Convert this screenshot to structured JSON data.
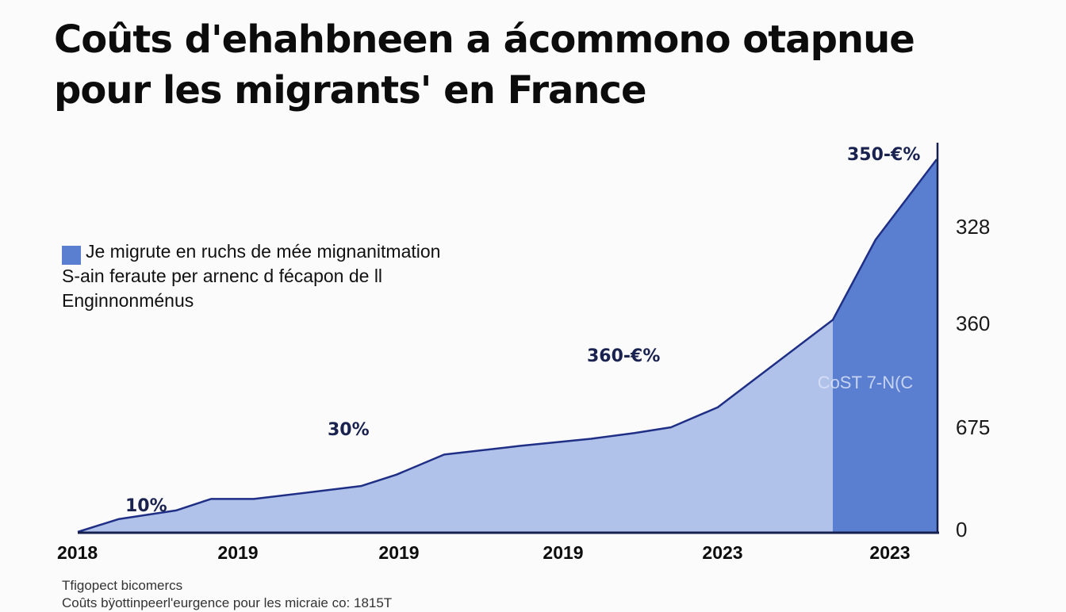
{
  "title_lines": [
    "Coûts d'ehahbneen a ácommono otapnue",
    "pour les migrants' en France"
  ],
  "legend": {
    "lines": [
      "Je migrute en ruchs de mée mignanitmation",
      "S-ain feraute per arnenc d fécapon de ll",
      "Enginnonménus"
    ]
  },
  "colors": {
    "area": "#b0c2ea",
    "highlight": "#5a7fd0",
    "line": "#1f2f86",
    "axis": "#15204f",
    "label": "#1a2350"
  },
  "chart_data": {
    "type": "area",
    "x_labels": [
      "2018",
      "2019",
      "2019",
      "2019",
      "2023",
      "2023"
    ],
    "series": [
      {
        "values": [
          0,
          9,
          15,
          23,
          23,
          32,
          40,
          54,
          60,
          65,
          69,
          73,
          87,
          148,
          204,
          226,
          249,
          260
        ]
      }
    ],
    "right_axis_labels": [
      "328",
      "360",
      "675",
      "0"
    ],
    "data_labels": [
      "10%",
      "30%",
      "360-€%",
      "350-€%"
    ],
    "highlight_label": "CoST 7-N(C",
    "ylim": [
      0,
      260
    ]
  },
  "source": {
    "lines": [
      "Tfigopect bicomercs",
      "Coûts bÿottinpeerl'eurgence pour les micraie co: 1815T"
    ]
  }
}
